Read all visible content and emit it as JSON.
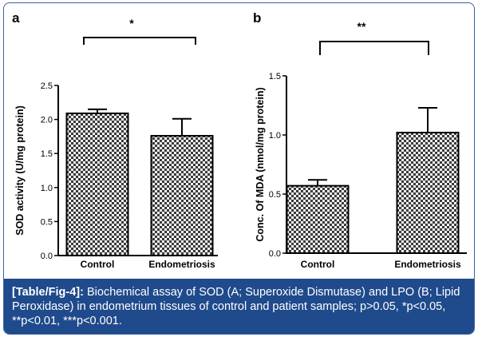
{
  "caption": {
    "lead": "[Table/Fig-4]:",
    "text": " Biochemical assay of SOD (A; Superoxide Dismutase) and LPO (B; Lipid Peroxidase) in endometrium tissues of control and patient samples; p>0.05, *p<0.05, **p<0.01, ***p<0.001."
  },
  "chart_data": [
    {
      "panel": "a",
      "type": "bar",
      "title": "",
      "xlabel": "",
      "ylabel": "SOD activity (U/mg protein)",
      "categories": [
        "Control",
        "Endometriosis"
      ],
      "values": [
        2.09,
        1.76
      ],
      "errors": [
        0.06,
        0.25
      ],
      "ylim": [
        0,
        2.5
      ],
      "yticks": [
        0.0,
        0.5,
        1.0,
        1.5,
        2.0,
        2.5
      ],
      "ytick_labels": [
        "0.0",
        "0.5",
        "1.0",
        "1.5",
        "2.0",
        "2.5"
      ],
      "significance": "*",
      "pattern": "checkered gray",
      "grid": false
    },
    {
      "panel": "b",
      "type": "bar",
      "title": "",
      "xlabel": "",
      "ylabel": "Conc. Of MDA (nmol/mg protein)",
      "categories": [
        "Control",
        "Endometriosis"
      ],
      "values": [
        0.57,
        1.02
      ],
      "errors": [
        0.05,
        0.21
      ],
      "ylim": [
        0,
        1.5
      ],
      "yticks": [
        0.0,
        0.5,
        1.0,
        1.5
      ],
      "ytick_labels": [
        "0.0",
        "0.5",
        "1.0",
        "1.5"
      ],
      "significance": "**",
      "pattern": "checkered gray",
      "grid": false
    }
  ],
  "colors": {
    "caption_background": "#1f4a8c",
    "frame_border": "#3a63a0",
    "caption_text": "#ffffff"
  }
}
